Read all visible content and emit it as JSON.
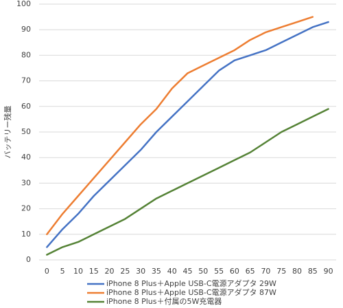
{
  "chart_data": {
    "type": "line",
    "y_label": "バッテリー残量",
    "categories": [
      "0",
      "5",
      "10",
      "15",
      "20",
      "25",
      "30",
      "35",
      "40",
      "45",
      "50",
      "55",
      "60",
      "65",
      "70",
      "75",
      "80",
      "85",
      "90"
    ],
    "series": [
      {
        "name": "iPhone 8 Plus＋Apple USB-C電源アダプタ 29W",
        "color": "#4472c4",
        "values": [
          5,
          12,
          18,
          25,
          31,
          37,
          43,
          50,
          56,
          62,
          68,
          74,
          78,
          80,
          82,
          85,
          88,
          91,
          93
        ]
      },
      {
        "name": "iPhone 8 Plus＋Apple USB-C電源アダプタ 87W",
        "color": "#ed7d31",
        "values": [
          10,
          18,
          25,
          32,
          39,
          46,
          53,
          59,
          67,
          73,
          76,
          79,
          82,
          86,
          89,
          91,
          93,
          95,
          null
        ]
      },
      {
        "name": "iPhone 8 Plus＋付属の5W充電器",
        "color": "#548235",
        "values": [
          2,
          5,
          7,
          10,
          13,
          16,
          20,
          24,
          27,
          30,
          33,
          36,
          39,
          42,
          46,
          50,
          53,
          56,
          59
        ]
      }
    ],
    "ylim": [
      0,
      100
    ],
    "yticks": [
      0,
      10,
      20,
      30,
      40,
      50,
      60,
      70,
      80,
      90,
      100
    ],
    "grid": true,
    "legend": "bottom"
  }
}
